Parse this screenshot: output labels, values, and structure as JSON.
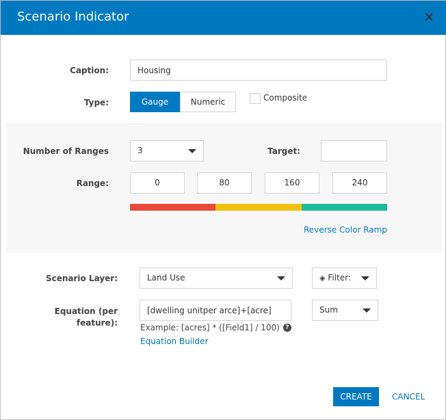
{
  "dialog": {
    "title": "Scenario Indicator"
  },
  "caption": {
    "label": "Caption:",
    "value": "Housing"
  },
  "type": {
    "label": "Type:",
    "options": [
      "Gauge",
      "Numeric"
    ],
    "selected": "Gauge",
    "composite_label": "Composite",
    "composite_checked": false
  },
  "ranges": {
    "count_label": "Number of Ranges",
    "count": "3",
    "target_label": "Target:",
    "target_value": "",
    "range_label": "Range:",
    "values": [
      "0",
      "80",
      "160",
      "240"
    ],
    "colors": [
      "#e8493a",
      "#f2c10e",
      "#1bbc9b"
    ],
    "reverse_label": "Reverse Color Ramp"
  },
  "layer": {
    "label": "Scenario Layer:",
    "value": "Land Use",
    "filter_label": "Filter:"
  },
  "equation": {
    "label": "Equation (per feature):",
    "value": "[dwelling unitper arce]+[acre]",
    "aggregate": "Sum",
    "example": "Example: [acres] * ([Field1] / 100)",
    "builder_label": "Equation Builder"
  },
  "footer": {
    "create": "CREATE",
    "cancel": "CANCEL"
  },
  "accent": "#0079c1"
}
